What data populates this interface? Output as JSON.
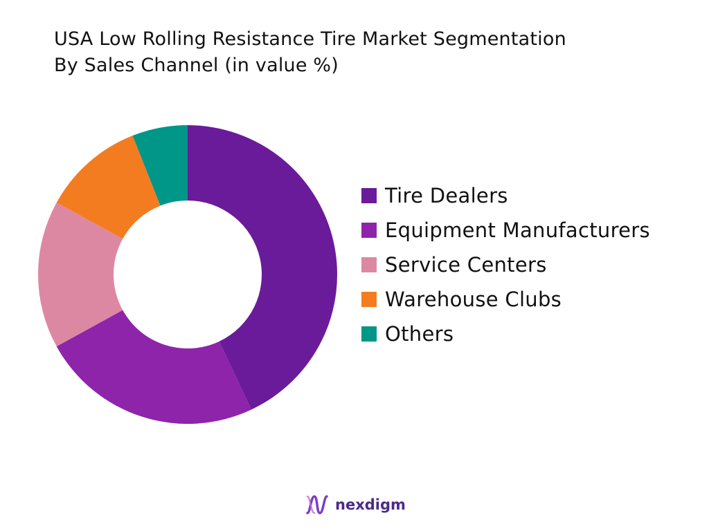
{
  "title_lines": [
    "USA Low Rolling Resistance Tire Market Segmentation",
    "By Sales Channel (in value %)"
  ],
  "chart_data": {
    "type": "pie",
    "style": "donut",
    "title": "USA Low Rolling Resistance Tire Market Segmentation By Sales Channel (in value %)",
    "categories": [
      "Tire Dealers",
      "Equipment Manufacturers",
      "Service Centers",
      "Warehouse Clubs",
      "Others"
    ],
    "values": [
      43,
      24,
      16,
      11,
      6
    ],
    "colors": [
      "#6a1b9a",
      "#8e24aa",
      "#dd88a3",
      "#f47c20",
      "#009688"
    ],
    "legend_position": "right",
    "start_angle": "top, clockwise"
  },
  "brand": {
    "name": "nexdigm",
    "logo_icon": "nexdigm-logo-icon"
  }
}
